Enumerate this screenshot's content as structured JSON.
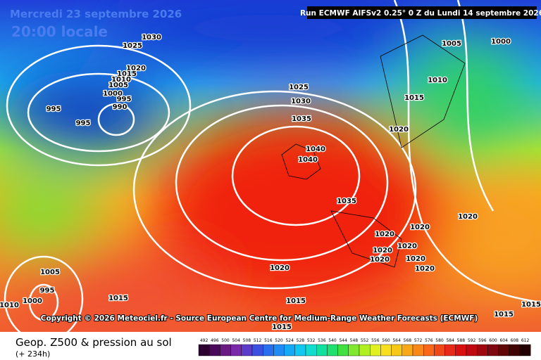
{
  "header": {
    "date": "Mercredi 23 septembre 2026",
    "time": "20:00 locale",
    "run": "Run ECMWF AIFSv2 0.25° 0 Z du Lundi 14 septembre 2026"
  },
  "copyright": "Copyright © 2026 Meteociel.fr - Source European Centre for Medium-Range Weather Forecasts (ECMWF)",
  "footer": {
    "title": "Geop. Z500 & pression au sol",
    "lead": "(+ 234h)"
  },
  "isobar_labels": [
    "1030",
    "1025",
    "1020",
    "1015",
    "1010",
    "1005",
    "1000",
    "995",
    "990",
    "995",
    "995",
    "1025",
    "1030",
    "1035",
    "1040",
    "1040",
    "1035",
    "1020",
    "1015",
    "1010",
    "1005",
    "1000",
    "1020",
    "1020",
    "1020",
    "1020",
    "1020",
    "1020",
    "1020",
    "1020",
    "1020",
    "1015",
    "1005",
    "995",
    "1000",
    "1010",
    "1015",
    "1015",
    "1015",
    "1015"
  ],
  "scale": {
    "labels": [
      492,
      496,
      500,
      504,
      508,
      512,
      516,
      520,
      524,
      528,
      532,
      536,
      540,
      544,
      548,
      552,
      556,
      560,
      564,
      568,
      572,
      576,
      580,
      584,
      588,
      592,
      596,
      600,
      604,
      608,
      612
    ],
    "colors": [
      "#2b0030",
      "#4a0a5c",
      "#6a1a80",
      "#7a2aa8",
      "#5a3cc8",
      "#3c50e0",
      "#2a6ef0",
      "#1e8cf5",
      "#14aaf5",
      "#10c8f0",
      "#10dcd0",
      "#10e0a0",
      "#20e070",
      "#40e040",
      "#80e830",
      "#b0f020",
      "#e0f020",
      "#f8e020",
      "#f8c818",
      "#f8a818",
      "#f88818",
      "#f86818",
      "#f04818",
      "#e82818",
      "#d81010",
      "#c00810",
      "#a00810",
      "#800810",
      "#600808",
      "#400404",
      "#200000"
    ]
  }
}
